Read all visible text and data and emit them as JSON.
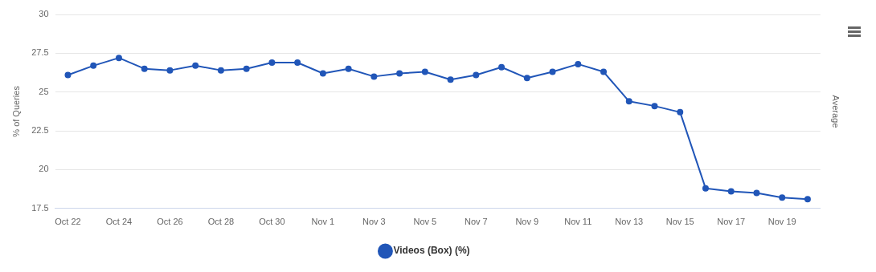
{
  "chart_data": {
    "type": "line",
    "ylabel": "% of Queries",
    "y2label": "Average",
    "categories": [
      "Oct 22",
      null,
      "Oct 24",
      null,
      "Oct 26",
      null,
      "Oct 28",
      null,
      "Oct 30",
      null,
      "Nov 1",
      null,
      "Nov 3",
      null,
      "Nov 5",
      null,
      "Nov 7",
      null,
      "Nov 9",
      null,
      "Nov 11",
      null,
      "Nov 13",
      null,
      "Nov 15",
      null,
      "Nov 17",
      null,
      "Nov 19",
      null
    ],
    "series": [
      {
        "name": "Videos (Box) (%)",
        "color": "#2156b8",
        "values": [
          26.1,
          26.7,
          27.2,
          26.5,
          26.4,
          26.7,
          26.4,
          26.5,
          26.9,
          26.9,
          26.2,
          26.5,
          26.0,
          26.2,
          26.3,
          25.8,
          26.1,
          26.6,
          25.9,
          26.3,
          26.8,
          26.3,
          24.4,
          24.1,
          23.7,
          18.8,
          18.6,
          18.5,
          18.2,
          18.1
        ]
      }
    ],
    "ylim": [
      17.5,
      30
    ],
    "yticks": [
      17.5,
      20,
      22.5,
      25,
      27.5,
      30
    ],
    "grid": "y",
    "legend": "bottom",
    "marker": "circle",
    "line_style": "solid"
  }
}
